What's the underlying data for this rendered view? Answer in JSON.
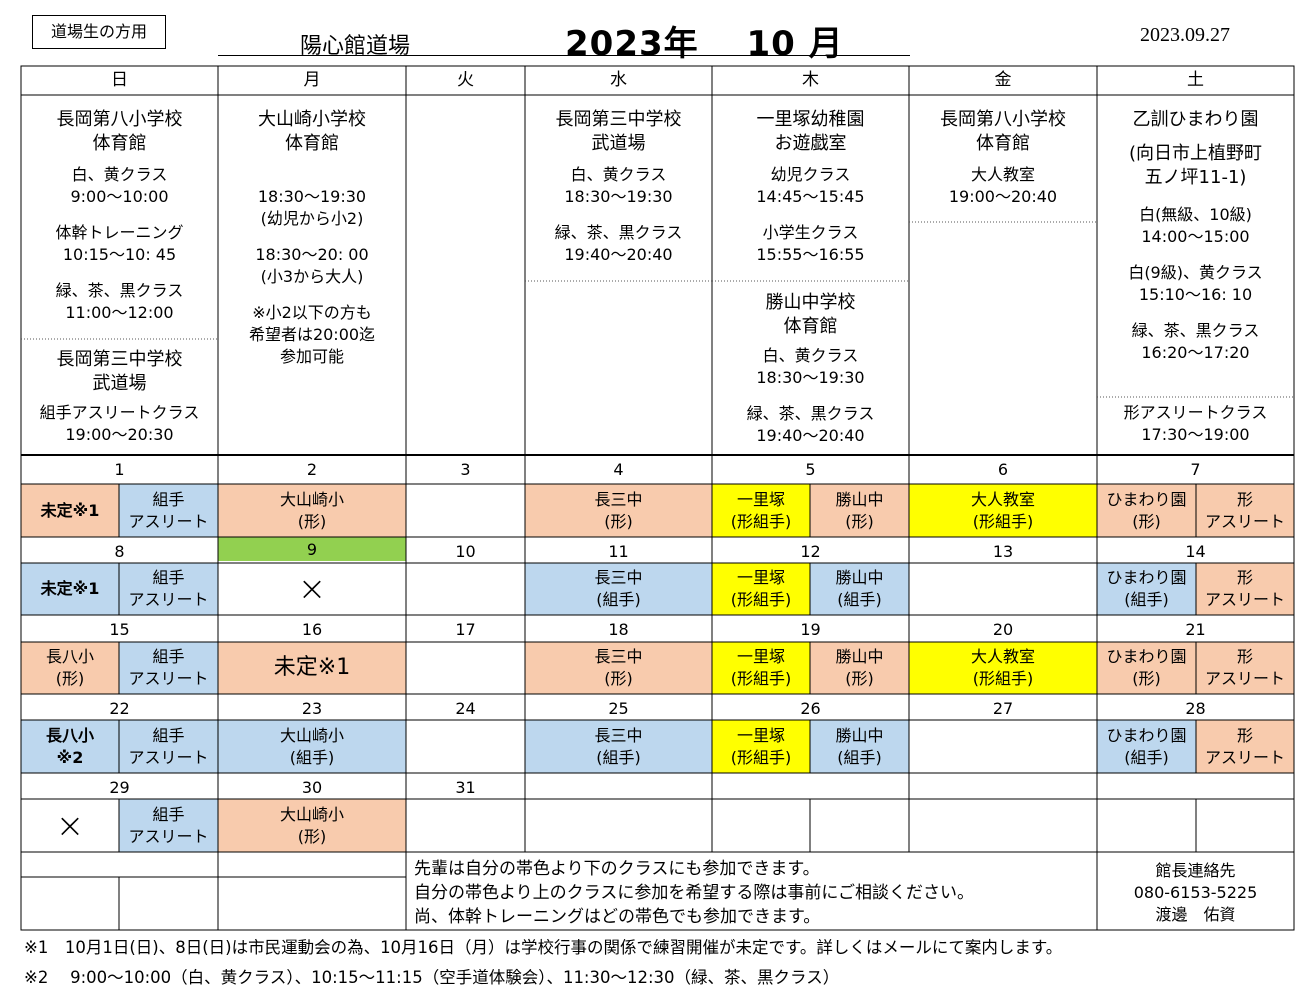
{
  "header": {
    "label": "道場生の方用",
    "venue": "陽心館道場",
    "month": "2023年　 10 月",
    "date": "2023.09.27"
  },
  "weekdays": [
    "日",
    "月",
    "火",
    "水",
    "木",
    "金",
    "土"
  ],
  "schedule": {
    "sun_a": [
      "長岡第八小学校",
      "体育館",
      "白、黄クラス",
      "9:00～10:00",
      "体幹トレーニング",
      "10:15～10: 45",
      "緑、茶、黒クラス",
      "11:00～12:00"
    ],
    "sun_b": [
      "長岡第三中学校",
      "武道場",
      "組手アスリートクラス",
      "19:00～20:30"
    ],
    "mon": [
      "大山崎小学校",
      "体育館",
      "18:30～19:30",
      "(幼児から小2)",
      "18:30～20: 00",
      "(小3から大人)",
      "※小2以下の方も",
      "希望者は20:00迄",
      "参加可能"
    ],
    "wed": [
      "長岡第三中学校",
      "武道場",
      "白、黄クラス",
      "18:30～19:30",
      "緑、茶、黒クラス",
      "19:40～20:40"
    ],
    "thu_a": [
      "一里塚幼稚園",
      "お遊戯室",
      "幼児クラス",
      "14:45～15:45",
      "小学生クラス",
      "15:55～16:55"
    ],
    "thu_b": [
      "勝山中学校",
      "体育館",
      "白、黄クラス",
      "18:30～19:30",
      "緑、茶、黒クラス",
      "19:40～20:40"
    ],
    "fri": [
      "長岡第八小学校",
      "体育館",
      "大人教室",
      "19:00～20:40"
    ],
    "sat_a": [
      "乙訓ひまわり園",
      "(向日市上植野町",
      "五ノ坪11-1)",
      "白(無級、10級)",
      "14:00～15:00",
      "白(9級)、黄クラス",
      "15:10～16: 10",
      "緑、茶、黒クラス",
      "16:20～17:20"
    ],
    "sat_b": [
      "形アスリートクラス",
      "17:30～19:00"
    ]
  },
  "calendar": {
    "w1": {
      "nums": [
        "1",
        "2",
        "3",
        "4",
        "5",
        "6",
        "7"
      ],
      "sun_l": "未定※1",
      "sun_r": [
        "組手",
        "アスリート"
      ],
      "mon": [
        "大山崎小",
        "(形)"
      ],
      "wed": [
        "長三中",
        "(形)"
      ],
      "thu_l": [
        "一里塚",
        "(形組手)"
      ],
      "thu_r": [
        "勝山中",
        "(形)"
      ],
      "fri": [
        "大人教室",
        "(形組手)"
      ],
      "sat_l": [
        "ひまわり園",
        "(形)"
      ],
      "sat_r": [
        "形",
        "アスリート"
      ]
    },
    "w2": {
      "nums": [
        "8",
        "9",
        "10",
        "11",
        "12",
        "13",
        "14"
      ],
      "sun_l": "未定※1",
      "sun_r": [
        "組手",
        "アスリート"
      ],
      "mon_mark": "×",
      "wed": [
        "長三中",
        "(組手)"
      ],
      "thu_l": [
        "一里塚",
        "(形組手)"
      ],
      "thu_r": [
        "勝山中",
        "(組手)"
      ],
      "sat_l": [
        "ひまわり園",
        "(組手)"
      ],
      "sat_r": [
        "形",
        "アスリート"
      ]
    },
    "w3": {
      "nums": [
        "15",
        "16",
        "17",
        "18",
        "19",
        "20",
        "21"
      ],
      "sun_l": [
        "長八小",
        "(形)"
      ],
      "sun_r": [
        "組手",
        "アスリート"
      ],
      "mon": "未定※1",
      "wed": [
        "長三中",
        "(形)"
      ],
      "thu_l": [
        "一里塚",
        "(形組手)"
      ],
      "thu_r": [
        "勝山中",
        "(形)"
      ],
      "fri": [
        "大人教室",
        "(形組手)"
      ],
      "sat_l": [
        "ひまわり園",
        "(形)"
      ],
      "sat_r": [
        "形",
        "アスリート"
      ]
    },
    "w4": {
      "nums": [
        "22",
        "23",
        "24",
        "25",
        "26",
        "27",
        "28"
      ],
      "sun_l": [
        "長八小",
        "※2"
      ],
      "sun_r": [
        "組手",
        "アスリート"
      ],
      "mon": [
        "大山崎小",
        "(組手)"
      ],
      "wed": [
        "長三中",
        "(組手)"
      ],
      "thu_l": [
        "一里塚",
        "(形組手)"
      ],
      "thu_r": [
        "勝山中",
        "(組手)"
      ],
      "sat_l": [
        "ひまわり園",
        "(組手)"
      ],
      "sat_r": [
        "形",
        "アスリート"
      ]
    },
    "w5": {
      "nums": [
        "29",
        "30",
        "31"
      ],
      "sun_mark": "×",
      "sun_r": [
        "組手",
        "アスリート"
      ],
      "mon": [
        "大山崎小",
        "(形)"
      ]
    }
  },
  "notes": [
    "先輩は自分の帯色より下のクラスにも参加できます。",
    "自分の帯色より上のクラスに参加を希望する際は事前にご相談ください。",
    "尚、体幹トレーニングはどの帯色でも参加できます。"
  ],
  "contact": [
    "館長連絡先",
    "080-6153-5225",
    "渡邊　佑資"
  ],
  "footnotes": [
    "※1　10月1日(日)、8日(日)は市民運動会の為、10月16日（月）は学校行事の関係で練習開催が未定です。詳しくはメールにて案内します。",
    "※2　 9:00～10:00（白、黄クラス）、10:15～11:15（空手道体験会）、11:30～12:30（緑、茶、黒クラス）"
  ],
  "colors": {
    "peach": "#f8cbad",
    "blue": "#bdd7ee",
    "yellow": "#ffff00",
    "green": "#92d050"
  }
}
